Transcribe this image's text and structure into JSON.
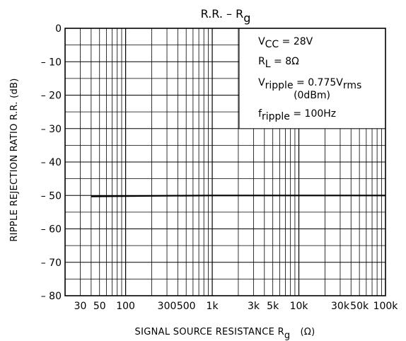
{
  "chart_data": {
    "type": "line",
    "title_main": "R.R.  –  R",
    "title_sub": "g",
    "xlabel_main": "SIGNAL  SOURCE  RESISTANCE   R",
    "xlabel_sub": "g",
    "xlabel_unit": "(Ω)",
    "ylabel": "RIPPLE  REJECTION  RATIO    R.R.    (dB)",
    "x_scale": "log",
    "xlim": [
      20,
      100000
    ],
    "ylim": [
      -80,
      0
    ],
    "grid": true,
    "x_ticks": [
      {
        "value": 30,
        "label": "30"
      },
      {
        "value": 50,
        "label": "50"
      },
      {
        "value": 100,
        "label": "100"
      },
      {
        "value": 300,
        "label": "300"
      },
      {
        "value": 500,
        "label": "500"
      },
      {
        "value": 1000,
        "label": "1k"
      },
      {
        "value": 3000,
        "label": "3k"
      },
      {
        "value": 5000,
        "label": "5k"
      },
      {
        "value": 10000,
        "label": "10k"
      },
      {
        "value": 30000,
        "label": "30k"
      },
      {
        "value": 50000,
        "label": "50k"
      },
      {
        "value": 100000,
        "label": "100k"
      }
    ],
    "y_ticks": [
      {
        "value": 0,
        "label": "0"
      },
      {
        "value": -10,
        "label": "– 10"
      },
      {
        "value": -20,
        "label": "– 20"
      },
      {
        "value": -30,
        "label": "– 30"
      },
      {
        "value": -40,
        "label": "– 40"
      },
      {
        "value": -50,
        "label": "– 50"
      },
      {
        "value": -60,
        "label": "– 60"
      },
      {
        "value": -70,
        "label": "– 70"
      },
      {
        "value": -80,
        "label": "– 80"
      }
    ],
    "series": [
      {
        "x": [
          40,
          100,
          300,
          1000,
          3000,
          10000,
          30000,
          100000
        ],
        "y": [
          -50.3,
          -50.2,
          -50.1,
          -50.0,
          -50.0,
          -50.0,
          -50.0,
          -50.0
        ]
      }
    ],
    "annotations": [
      {
        "main": "V",
        "sub": "CC",
        "rest": " = 28V"
      },
      {
        "main": "R",
        "sub": "L",
        "rest": " = 8Ω"
      },
      {
        "main": "V",
        "sub": "ripple",
        "rest": " = 0.775V",
        "sub2": "rms"
      },
      {
        "main": "",
        "sub": "",
        "rest": "(0dBm)"
      },
      {
        "main": "f",
        "sub": "ripple",
        "rest": " = 100Hz"
      }
    ]
  }
}
